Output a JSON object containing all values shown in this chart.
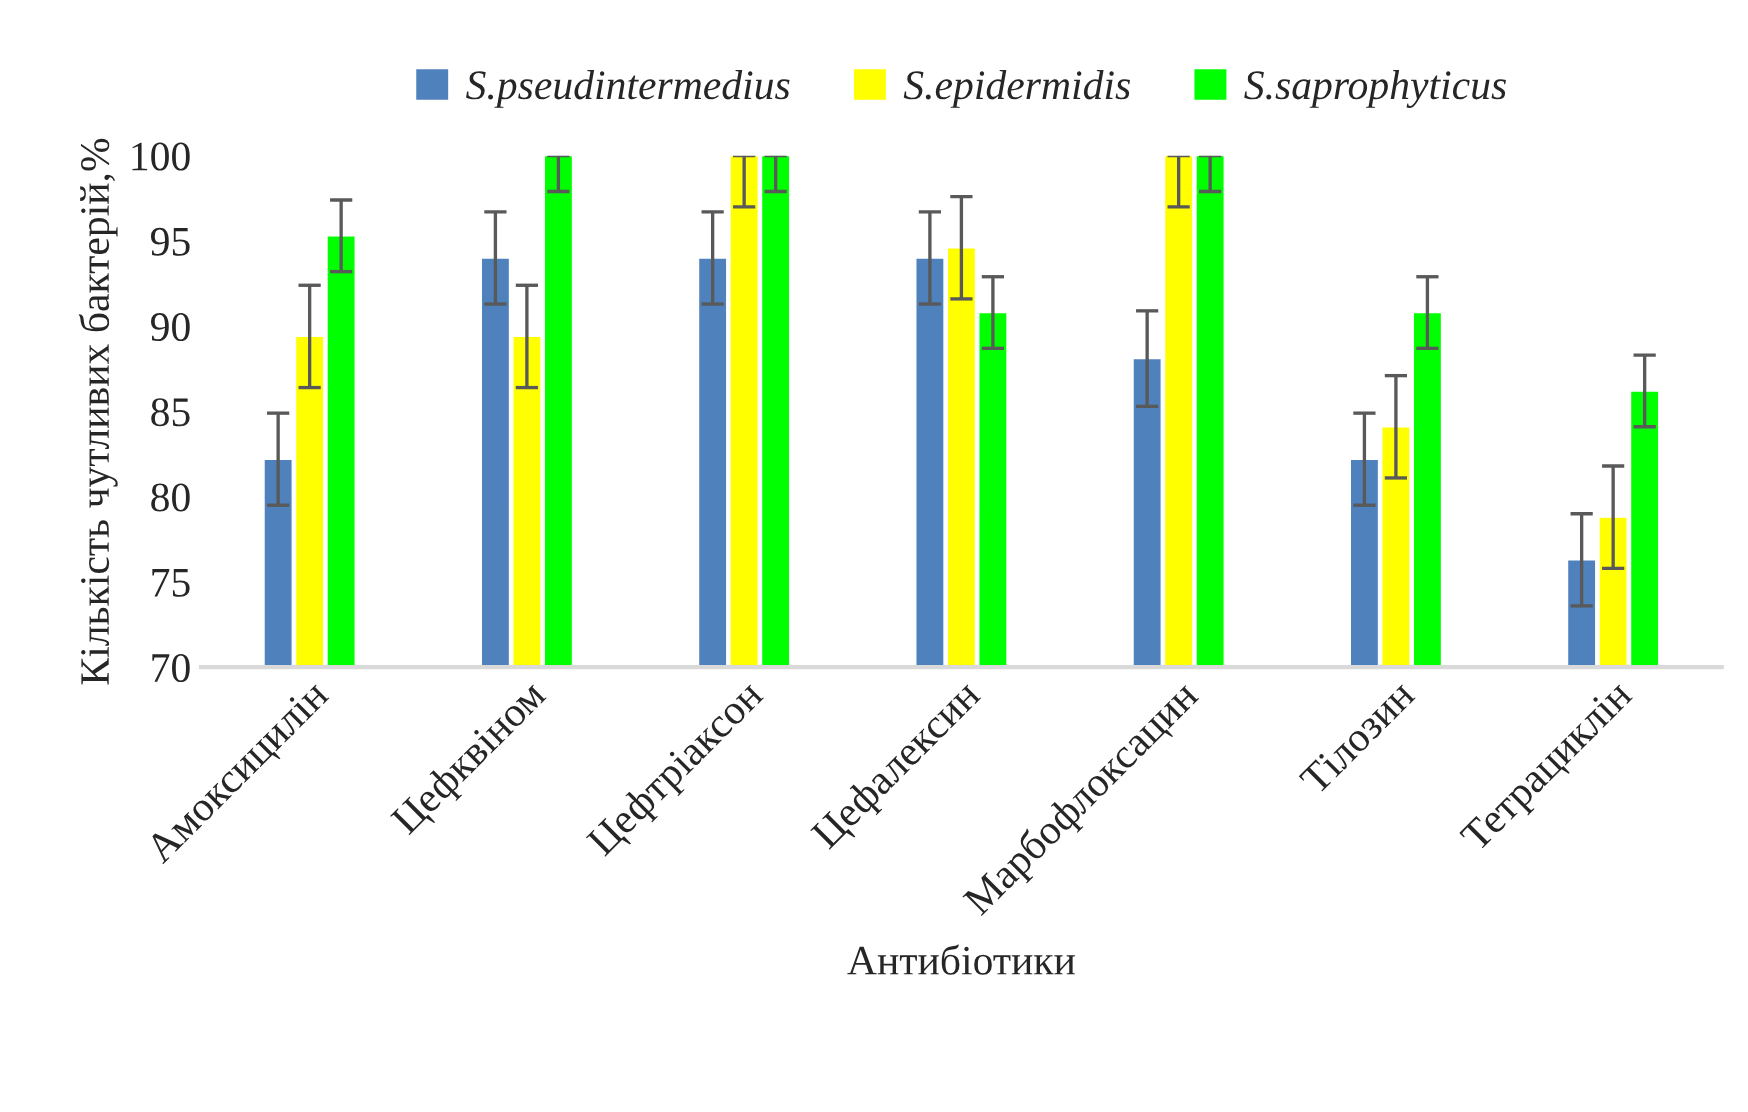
{
  "chart_data": {
    "type": "bar",
    "xlabel": "Антибіотики",
    "ylabel": "Кількість чутливих бактерій,%",
    "categories": [
      "Амоксицилін",
      "Цефквіном",
      "Цефтріаксон",
      "Цефалексин",
      "Марбофлоксацин",
      "Тілозин",
      "Тетрациклін"
    ],
    "series": [
      {
        "name": "S.pseudintermedius",
        "color": "#4f81bd",
        "values": [
          82.2,
          94,
          94,
          94,
          88.1,
          82.2,
          76.3
        ],
        "errors": [
          2.7,
          2.7,
          2.7,
          2.7,
          2.8,
          2.7,
          2.7
        ]
      },
      {
        "name": "S.epidermidis",
        "color": "#ffff00",
        "values": [
          89.4,
          89.4,
          100,
          94.6,
          100,
          84.1,
          78.8
        ],
        "errors": [
          3,
          3,
          [
            97,
            100
          ],
          3,
          [
            97,
            100
          ],
          3,
          3
        ]
      },
      {
        "name": "S.saprophyticus",
        "color": "#00ff00",
        "values": [
          95.3,
          100,
          100,
          90.8,
          100,
          90.8,
          86.2
        ],
        "errors": [
          2.1,
          [
            97.9,
            100
          ],
          [
            97.9,
            100
          ],
          2.1,
          [
            97.9,
            100
          ],
          2.1,
          2.1
        ]
      }
    ],
    "ylim": [
      70,
      100
    ],
    "yticks": [
      70,
      75,
      80,
      85,
      90,
      95,
      100
    ],
    "grid": false,
    "legend": "top"
  }
}
